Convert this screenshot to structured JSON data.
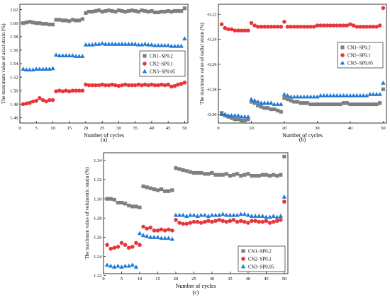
{
  "colors": {
    "CN1-SP0.2": "#7f7f7f",
    "CN2-SP0.1": "#e8353a",
    "CN3-SP0.05": "#1f7ad6"
  },
  "chart_data": [
    {
      "panel": "(a)",
      "type": "scatter",
      "title": "",
      "xlabel": "Number of cycles",
      "ylabel": "The maximum value of axial strain (%)",
      "xlim": [
        0,
        51
      ],
      "ylim": [
        1.452,
        1.628
      ],
      "xticks": [
        0,
        5,
        10,
        15,
        20,
        25,
        30,
        35,
        40,
        45,
        50
      ],
      "yticks": [
        1.46,
        1.48,
        1.5,
        1.52,
        1.54,
        1.56,
        1.58,
        1.6,
        1.62
      ],
      "tick_format": 2,
      "legend": "center-right",
      "series": [
        {
          "name": "CN1−SP0.2",
          "marker": "square",
          "color": "#7f7f7f",
          "x": [
            1,
            2,
            3,
            4,
            5,
            6,
            7,
            8,
            9,
            10,
            11,
            12,
            13,
            14,
            15,
            16,
            17,
            18,
            19,
            20,
            21,
            22,
            23,
            24,
            25,
            26,
            27,
            28,
            29,
            30,
            31,
            32,
            33,
            34,
            35,
            36,
            37,
            38,
            39,
            40,
            41,
            42,
            43,
            44,
            45,
            46,
            47,
            48,
            49,
            50
          ],
          "y": [
            1.6,
            1.601,
            1.602,
            1.601,
            1.6,
            1.6,
            1.599,
            1.599,
            1.598,
            1.598,
            1.605,
            1.605,
            1.604,
            1.604,
            1.603,
            1.605,
            1.604,
            1.604,
            1.606,
            1.615,
            1.617,
            1.617,
            1.618,
            1.619,
            1.617,
            1.618,
            1.619,
            1.618,
            1.617,
            1.619,
            1.618,
            1.617,
            1.618,
            1.619,
            1.618,
            1.617,
            1.619,
            1.618,
            1.617,
            1.618,
            1.616,
            1.616,
            1.617,
            1.617,
            1.618,
            1.617,
            1.618,
            1.618,
            1.618,
            1.622
          ]
        },
        {
          "name": "CN2−SP0.1",
          "marker": "circle",
          "color": "#e8353a",
          "x": [
            1,
            2,
            3,
            4,
            5,
            6,
            7,
            8,
            9,
            10,
            11,
            12,
            13,
            14,
            15,
            16,
            17,
            18,
            19,
            20,
            21,
            22,
            23,
            24,
            25,
            26,
            27,
            28,
            29,
            30,
            31,
            32,
            33,
            34,
            35,
            36,
            37,
            38,
            39,
            40,
            41,
            42,
            43,
            44,
            45,
            46,
            47,
            48,
            49,
            50
          ],
          "y": [
            1.48,
            1.481,
            1.482,
            1.484,
            1.485,
            1.489,
            1.486,
            1.484,
            1.486,
            1.486,
            1.499,
            1.5,
            1.499,
            1.5,
            1.499,
            1.5,
            1.5,
            1.5,
            1.5,
            1.509,
            1.508,
            1.508,
            1.508,
            1.508,
            1.509,
            1.508,
            1.508,
            1.509,
            1.508,
            1.507,
            1.508,
            1.509,
            1.508,
            1.508,
            1.508,
            1.509,
            1.508,
            1.509,
            1.508,
            1.509,
            1.508,
            1.508,
            1.509,
            1.508,
            1.509,
            1.506,
            1.507,
            1.509,
            1.51,
            1.512
          ]
        },
        {
          "name": "CN3−SP0.05",
          "marker": "triangle",
          "color": "#1f7ad6",
          "x": [
            1,
            2,
            3,
            4,
            5,
            6,
            7,
            8,
            9,
            10,
            11,
            12,
            13,
            14,
            15,
            16,
            17,
            18,
            19,
            20,
            21,
            22,
            23,
            24,
            25,
            26,
            27,
            28,
            29,
            30,
            31,
            32,
            33,
            34,
            35,
            36,
            37,
            38,
            39,
            40,
            41,
            42,
            43,
            44,
            45,
            46,
            47,
            48,
            49,
            50
          ],
          "y": [
            1.532,
            1.531,
            1.531,
            1.531,
            1.532,
            1.532,
            1.532,
            1.532,
            1.532,
            1.533,
            1.553,
            1.552,
            1.552,
            1.552,
            1.552,
            1.552,
            1.551,
            1.551,
            1.551,
            1.568,
            1.568,
            1.568,
            1.569,
            1.569,
            1.57,
            1.569,
            1.569,
            1.569,
            1.569,
            1.569,
            1.569,
            1.569,
            1.569,
            1.569,
            1.569,
            1.568,
            1.568,
            1.569,
            1.568,
            1.568,
            1.567,
            1.567,
            1.567,
            1.567,
            1.567,
            1.566,
            1.566,
            1.566,
            1.566,
            1.577
          ]
        }
      ]
    },
    {
      "panel": "(b)",
      "type": "scatter",
      "title": "",
      "xlabel": "Number of cycles",
      "ylabel": "The maximum value of radial strain (%)",
      "xlim": [
        0,
        51
      ],
      "ylim": [
        -0.307,
        -0.212
      ],
      "xticks": [
        0,
        10,
        20,
        30,
        40,
        50
      ],
      "yticks": [
        -0.3,
        -0.28,
        -0.26,
        -0.24,
        -0.22
      ],
      "tick_format": 2,
      "legend": "top-right",
      "series": [
        {
          "name": "CN1−SP0.2",
          "marker": "square",
          "color": "#7f7f7f",
          "x": [
            1,
            2,
            3,
            4,
            5,
            6,
            7,
            8,
            9,
            10,
            11,
            12,
            13,
            14,
            15,
            16,
            17,
            18,
            19,
            20,
            21,
            22,
            23,
            24,
            25,
            26,
            27,
            28,
            29,
            30,
            31,
            32,
            33,
            34,
            35,
            36,
            37,
            38,
            39,
            40,
            41,
            42,
            43,
            44,
            45,
            46,
            47,
            48,
            49,
            50
          ],
          "y": [
            -0.299,
            -0.301,
            -0.302,
            -0.303,
            -0.304,
            -0.304,
            -0.305,
            -0.305,
            -0.304,
            -0.29,
            -0.291,
            -0.293,
            -0.294,
            -0.295,
            -0.295,
            -0.296,
            -0.296,
            -0.297,
            -0.298,
            -0.287,
            -0.288,
            -0.289,
            -0.29,
            -0.29,
            -0.291,
            -0.291,
            -0.291,
            -0.292,
            -0.292,
            -0.292,
            -0.292,
            -0.292,
            -0.292,
            -0.292,
            -0.292,
            -0.292,
            -0.292,
            -0.291,
            -0.291,
            -0.292,
            -0.292,
            -0.292,
            -0.292,
            -0.292,
            -0.292,
            -0.292,
            -0.292,
            -0.292,
            -0.291,
            -0.28
          ]
        },
        {
          "name": "CN2−SP0.1",
          "marker": "circle",
          "color": "#e8353a",
          "x": [
            1,
            2,
            3,
            4,
            5,
            6,
            7,
            8,
            9,
            10,
            11,
            12,
            13,
            14,
            15,
            16,
            17,
            18,
            19,
            20,
            21,
            22,
            23,
            24,
            25,
            26,
            27,
            28,
            29,
            30,
            31,
            32,
            33,
            34,
            35,
            36,
            37,
            38,
            39,
            40,
            41,
            42,
            43,
            44,
            45,
            46,
            47,
            48,
            49,
            50
          ],
          "y": [
            -0.228,
            -0.231,
            -0.232,
            -0.232,
            -0.233,
            -0.233,
            -0.233,
            -0.233,
            -0.233,
            -0.227,
            -0.229,
            -0.23,
            -0.23,
            -0.23,
            -0.23,
            -0.23,
            -0.23,
            -0.23,
            -0.23,
            -0.226,
            -0.23,
            -0.23,
            -0.23,
            -0.23,
            -0.23,
            -0.23,
            -0.23,
            -0.23,
            -0.23,
            -0.229,
            -0.229,
            -0.229,
            -0.229,
            -0.229,
            -0.229,
            -0.229,
            -0.229,
            -0.229,
            -0.229,
            -0.228,
            -0.229,
            -0.23,
            -0.23,
            -0.23,
            -0.23,
            -0.23,
            -0.23,
            -0.23,
            -0.229,
            -0.215
          ]
        },
        {
          "name": "CN3−SP0.05",
          "marker": "triangle",
          "color": "#1f7ad6",
          "x": [
            1,
            2,
            3,
            4,
            5,
            6,
            7,
            8,
            9,
            10,
            11,
            12,
            13,
            14,
            15,
            16,
            17,
            18,
            19,
            20,
            21,
            22,
            23,
            24,
            25,
            26,
            27,
            28,
            29,
            30,
            31,
            32,
            33,
            34,
            35,
            36,
            37,
            38,
            39,
            40,
            41,
            42,
            43,
            44,
            45,
            46,
            47,
            48,
            49,
            50
          ],
          "y": [
            -0.3,
            -0.3,
            -0.301,
            -0.301,
            -0.301,
            -0.301,
            -0.302,
            -0.302,
            -0.302,
            -0.288,
            -0.289,
            -0.29,
            -0.291,
            -0.291,
            -0.291,
            -0.291,
            -0.292,
            -0.292,
            -0.292,
            -0.284,
            -0.285,
            -0.286,
            -0.286,
            -0.286,
            -0.286,
            -0.286,
            -0.286,
            -0.286,
            -0.286,
            -0.286,
            -0.285,
            -0.285,
            -0.285,
            -0.285,
            -0.285,
            -0.285,
            -0.285,
            -0.285,
            -0.285,
            -0.285,
            -0.285,
            -0.285,
            -0.285,
            -0.285,
            -0.285,
            -0.284,
            -0.284,
            -0.284,
            -0.284,
            -0.275
          ]
        }
      ]
    },
    {
      "panel": "(c)",
      "type": "scatter",
      "title": "",
      "xlabel": "Number of cycles",
      "ylabel": "The maximum value of volumetric strain (%)",
      "xlim": [
        0,
        51
      ],
      "ylim": [
        1.222,
        1.348
      ],
      "xticks": [
        0,
        5,
        10,
        15,
        20,
        25,
        30,
        35,
        40,
        45,
        50
      ],
      "yticks": [
        1.22,
        1.24,
        1.26,
        1.28,
        1.3,
        1.32,
        1.34
      ],
      "tick_format": 2,
      "legend": "bottom-right",
      "series": [
        {
          "name": "CN1−SP0.2",
          "marker": "square",
          "color": "#7f7f7f",
          "x": [
            1,
            2,
            3,
            4,
            5,
            6,
            7,
            8,
            9,
            10,
            11,
            12,
            13,
            14,
            15,
            16,
            17,
            18,
            19,
            20,
            21,
            22,
            23,
            24,
            25,
            26,
            27,
            28,
            29,
            30,
            31,
            32,
            33,
            34,
            35,
            36,
            37,
            38,
            39,
            40,
            41,
            42,
            43,
            44,
            45,
            46,
            47,
            48,
            49,
            50
          ],
          "y": [
            1.3,
            1.3,
            1.299,
            1.296,
            1.296,
            1.295,
            1.293,
            1.292,
            1.292,
            1.291,
            1.313,
            1.312,
            1.311,
            1.31,
            1.309,
            1.31,
            1.308,
            1.308,
            1.309,
            1.332,
            1.331,
            1.33,
            1.329,
            1.328,
            1.327,
            1.327,
            1.327,
            1.326,
            1.326,
            1.327,
            1.325,
            1.325,
            1.325,
            1.326,
            1.324,
            1.325,
            1.326,
            1.324,
            1.325,
            1.326,
            1.324,
            1.324,
            1.324,
            1.325,
            1.325,
            1.324,
            1.325,
            1.324,
            1.325,
            1.344
          ]
        },
        {
          "name": "CN2−SP0.1",
          "marker": "circle",
          "color": "#e8353a",
          "x": [
            1,
            2,
            3,
            4,
            5,
            6,
            7,
            8,
            9,
            10,
            11,
            12,
            13,
            14,
            15,
            16,
            17,
            18,
            19,
            20,
            21,
            22,
            23,
            24,
            25,
            26,
            27,
            28,
            29,
            30,
            31,
            32,
            33,
            34,
            35,
            36,
            37,
            38,
            39,
            40,
            41,
            42,
            43,
            44,
            45,
            46,
            47,
            48,
            49,
            50
          ],
          "y": [
            1.252,
            1.248,
            1.249,
            1.25,
            1.254,
            1.252,
            1.249,
            1.25,
            1.254,
            1.252,
            1.271,
            1.269,
            1.27,
            1.267,
            1.267,
            1.268,
            1.267,
            1.268,
            1.267,
            1.278,
            1.275,
            1.274,
            1.274,
            1.275,
            1.276,
            1.276,
            1.275,
            1.276,
            1.277,
            1.276,
            1.277,
            1.278,
            1.277,
            1.276,
            1.277,
            1.278,
            1.276,
            1.277,
            1.276,
            1.275,
            1.277,
            1.277,
            1.276,
            1.276,
            1.277,
            1.275,
            1.276,
            1.277,
            1.278,
            1.297
          ]
        },
        {
          "name": "CN3−SP0.05",
          "marker": "triangle",
          "color": "#1f7ad6",
          "x": [
            1,
            2,
            3,
            4,
            5,
            6,
            7,
            8,
            9,
            10,
            11,
            12,
            13,
            14,
            15,
            16,
            17,
            18,
            19,
            20,
            21,
            22,
            23,
            24,
            25,
            26,
            27,
            28,
            29,
            30,
            31,
            32,
            33,
            34,
            35,
            36,
            37,
            38,
            39,
            40,
            41,
            42,
            43,
            44,
            45,
            46,
            47,
            48,
            49,
            50
          ],
          "y": [
            1.231,
            1.23,
            1.229,
            1.23,
            1.229,
            1.23,
            1.23,
            1.231,
            1.229,
            1.264,
            1.262,
            1.261,
            1.26,
            1.26,
            1.26,
            1.259,
            1.259,
            1.259,
            1.258,
            1.283,
            1.283,
            1.283,
            1.282,
            1.283,
            1.283,
            1.282,
            1.283,
            1.283,
            1.282,
            1.283,
            1.283,
            1.283,
            1.284,
            1.283,
            1.283,
            1.283,
            1.283,
            1.284,
            1.284,
            1.283,
            1.282,
            1.282,
            1.282,
            1.282,
            1.281,
            1.281,
            1.282,
            1.281,
            1.282,
            1.302
          ]
        }
      ]
    }
  ]
}
